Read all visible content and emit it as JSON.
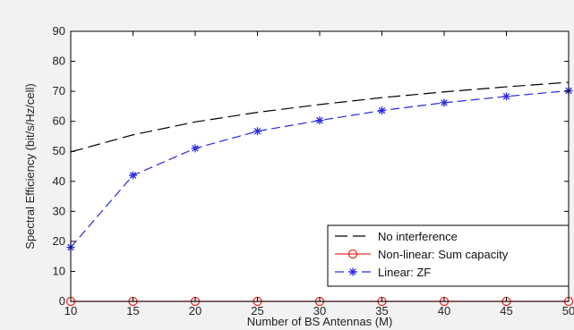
{
  "chart_data": {
    "type": "line",
    "title": "",
    "xlabel": "Number of BS Antennas (M)",
    "ylabel": "Spectral Efficiency (bit/s/Hz/cell)",
    "xlim": [
      10,
      50
    ],
    "ylim": [
      0,
      90
    ],
    "xticks": [
      10,
      15,
      20,
      25,
      30,
      35,
      40,
      45,
      50
    ],
    "yticks": [
      0,
      10,
      20,
      30,
      40,
      50,
      60,
      70,
      80,
      90
    ],
    "grid": false,
    "legend_position": "bottom-right",
    "series": [
      {
        "name": "No interference",
        "color": "#000000",
        "line_style": "long-dash",
        "marker": "none",
        "x": [
          10,
          15,
          20,
          25,
          30,
          35,
          40,
          45,
          50
        ],
        "values": [
          49.8,
          55.5,
          59.8,
          63.0,
          65.6,
          67.9,
          69.8,
          71.5,
          73.0
        ]
      },
      {
        "name": "Non-linear: Sum capacity",
        "color": "#e8302a",
        "line_style": "solid",
        "marker": "circle",
        "x": [
          10,
          15,
          20,
          25,
          30,
          35,
          40,
          45,
          50
        ],
        "values": [
          0,
          0,
          0,
          0,
          0,
          0,
          0,
          0,
          0
        ]
      },
      {
        "name": "Linear: ZF",
        "color": "#2a2ae0",
        "line_style": "dash",
        "marker": "star",
        "x": [
          10,
          15,
          20,
          25,
          30,
          35,
          40,
          45,
          50
        ],
        "values": [
          18.0,
          42.0,
          51.0,
          56.7,
          60.3,
          63.6,
          66.2,
          68.3,
          70.2
        ]
      }
    ]
  }
}
